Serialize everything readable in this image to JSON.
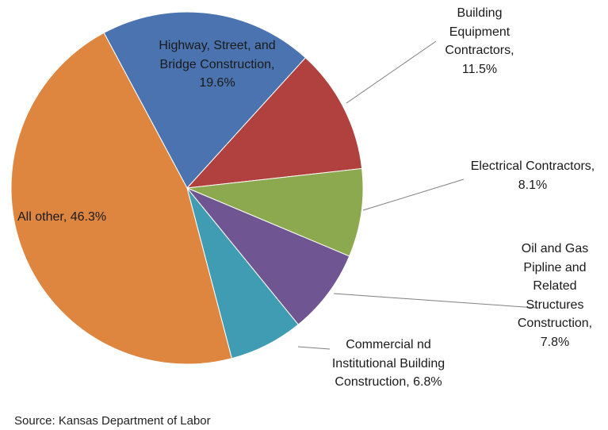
{
  "chart_data": {
    "type": "pie",
    "values": [
      19.6,
      11.5,
      8.1,
      7.8,
      6.8,
      46.3
    ],
    "value_labels": [
      "Highway, Street, and Bridge Construction, 19.6%",
      "Building Equipment Contractors, 11.5%",
      "Electrical Contractors, 8.1%",
      "Oil and Gas Pipline and Related Structures Construction, 7.8%",
      "Commercial nd Institutional Building Construction, 6.8%",
      "All other, 46.3%"
    ],
    "colors": [
      "#4a73b0",
      "#b0413e",
      "#8ca94f",
      "#6f5592",
      "#3f9cb3",
      "#de8540"
    ],
    "source": "Source:  Kansas Department of Labor"
  }
}
